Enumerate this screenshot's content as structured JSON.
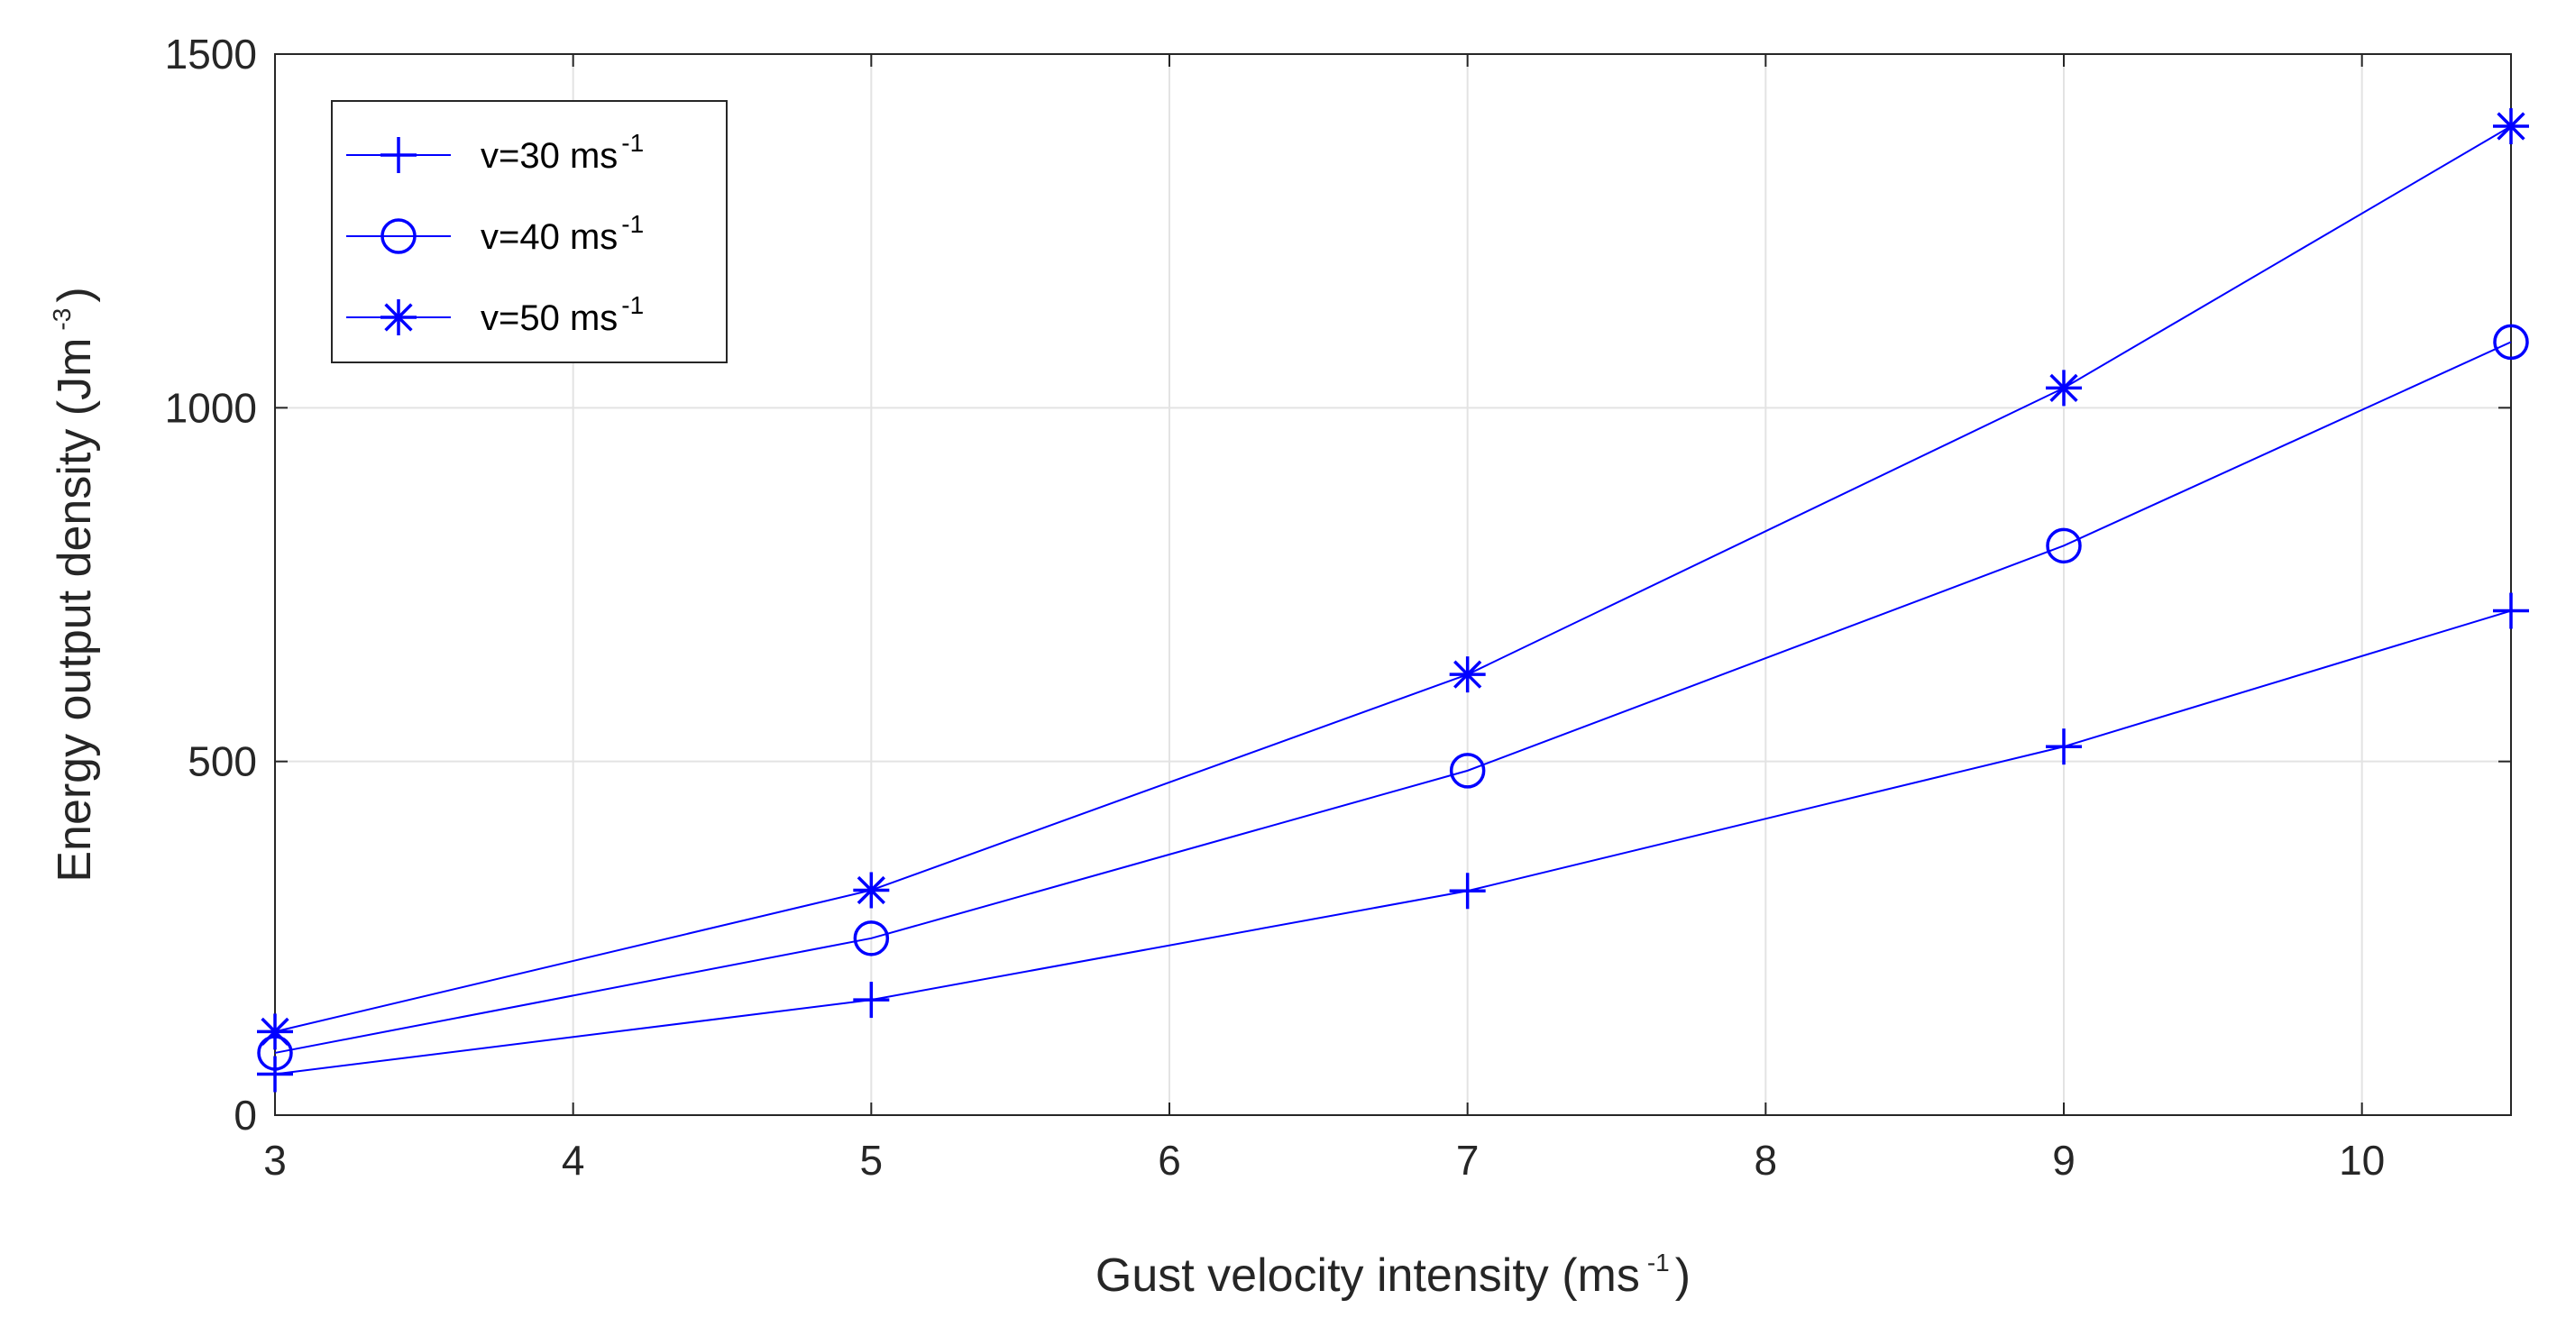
{
  "chart_data": {
    "type": "line",
    "title": "",
    "xlabel": "Gust velocity intensity (ms",
    "xlabel_sup": "-1",
    "xlabel_end": ")",
    "ylabel": "Energy output density (Jm",
    "ylabel_sup": "-3",
    "ylabel_end": ")",
    "xlim": [
      3,
      10.5
    ],
    "ylim": [
      0,
      1500
    ],
    "xticks": [
      3,
      4,
      5,
      6,
      7,
      8,
      9,
      10
    ],
    "yticks": [
      0,
      500,
      1000,
      1500
    ],
    "grid": true,
    "legend_position": "top-left",
    "x": [
      3,
      5,
      7,
      9,
      10.5
    ],
    "series": [
      {
        "name": "v=30 ms",
        "name_sup": "-1",
        "marker": "plus",
        "values": [
          58,
          163,
          317,
          521,
          713
        ]
      },
      {
        "name": "v=40 ms",
        "name_sup": "-1",
        "marker": "circle",
        "values": [
          88,
          250,
          487,
          805,
          1093
        ]
      },
      {
        "name": "v=50 ms",
        "name_sup": "-1",
        "marker": "asterisk",
        "values": [
          118,
          318,
          623,
          1028,
          1398
        ]
      }
    ],
    "line_color": "#0000ff"
  }
}
